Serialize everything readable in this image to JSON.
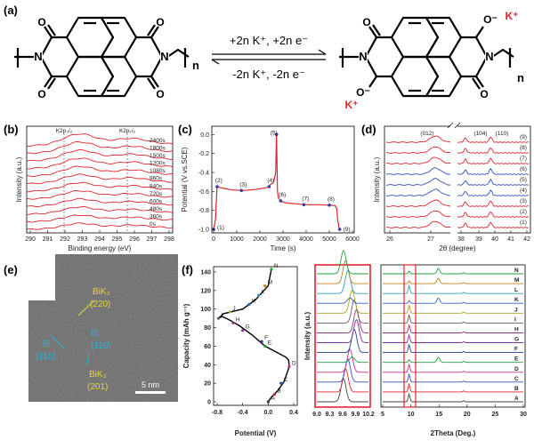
{
  "panels": {
    "a": {
      "label": "(a)",
      "forward": "+2n K⁺, +2n e⁻",
      "reverse": "-2n K⁺,  -2n e⁻",
      "n_left": "n",
      "n_right": "n",
      "atoms": {
        "N": "N",
        "O": "O",
        "Om": "O⁻",
        "K": "K⁺"
      },
      "colors": {
        "k_ion": "#e0242c",
        "bond": "#000000"
      }
    },
    "b": {
      "label": "(b)"
    },
    "c": {
      "label": "(c)"
    },
    "d": {
      "label": "(d)"
    },
    "e": {
      "label": "(e)",
      "annotations": [
        {
          "id": "bik3-220",
          "line1": "BiK₃",
          "line2": "(220)",
          "color": "#e8d830"
        },
        {
          "id": "bi-110-left",
          "line1": "Bi",
          "line2": "(110)",
          "color": "#22b8d8"
        },
        {
          "id": "bi-110-right",
          "line1": "Bi",
          "line2": "(110)",
          "color": "#22b8d8"
        },
        {
          "id": "bik3-201",
          "line1": "BiK₃",
          "line2": "(201)",
          "color": "#e8d830"
        }
      ],
      "scale_bar": "5 nm"
    },
    "f": {
      "label": "(f)"
    }
  },
  "chart_data": [
    {
      "id": "b",
      "type": "line",
      "xlabel": "Binding energy (eV)",
      "ylabel": "Intensity (a.u.)",
      "xlim": [
        290,
        298
      ],
      "xticks": [
        "290",
        "291",
        "292",
        "293",
        "294",
        "295",
        "296",
        "297",
        "298"
      ],
      "peak_labels": [
        "K2p₃/₂",
        "K2p₁/₂"
      ],
      "peak_positions": [
        292.9,
        295.7
      ],
      "series": [
        {
          "name": "0s"
        },
        {
          "name": "360s"
        },
        {
          "name": "480s"
        },
        {
          "name": "600s"
        },
        {
          "name": "720s"
        },
        {
          "name": "840s"
        },
        {
          "name": "960s"
        },
        {
          "name": "1080s"
        },
        {
          "name": "1200s"
        },
        {
          "name": "1500s"
        },
        {
          "name": "1800s"
        },
        {
          "name": "2400s"
        }
      ],
      "line_color": "#e0242c"
    },
    {
      "id": "c",
      "type": "line",
      "xlabel": "Time (s)",
      "ylabel": "Potential (V vs.SCE)",
      "xlim": [
        0,
        6000
      ],
      "ylim": [
        -1.0,
        0.05
      ],
      "xticks": [
        "0",
        "1000",
        "2000",
        "3000",
        "4000",
        "5000",
        "6000"
      ],
      "yticks": [
        "0.0",
        "-0.2",
        "-0.4",
        "-0.6",
        "-0.8",
        "-1.0"
      ],
      "x": [
        0,
        80,
        150,
        300,
        800,
        1300,
        1800,
        2300,
        2600,
        2680,
        2720,
        2760,
        2800,
        2900,
        3100,
        3500,
        4000,
        4500,
        5000,
        5250,
        5320,
        5360,
        5420,
        5450
      ],
      "y": [
        -1.0,
        -0.9,
        -0.55,
        -0.56,
        -0.585,
        -0.59,
        -0.58,
        -0.56,
        -0.5,
        -0.4,
        0.0,
        -0.6,
        -0.67,
        -0.7,
        -0.72,
        -0.73,
        -0.74,
        -0.74,
        -0.745,
        -0.75,
        -0.78,
        -0.9,
        -0.98,
        -1.0
      ],
      "points": [
        {
          "label": "(1)",
          "x": 0,
          "y": -1.0
        },
        {
          "label": "(2)",
          "x": 150,
          "y": -0.55
        },
        {
          "label": "(3)",
          "x": 1200,
          "y": -0.59
        },
        {
          "label": "(4)",
          "x": 2400,
          "y": -0.55
        },
        {
          "label": "(5)",
          "x": 2720,
          "y": 0.0
        },
        {
          "label": "(6)",
          "x": 2900,
          "y": -0.7
        },
        {
          "label": "(7)",
          "x": 3900,
          "y": -0.74
        },
        {
          "label": "(8)",
          "x": 5000,
          "y": -0.745
        },
        {
          "label": "(9)",
          "x": 5450,
          "y": -1.0
        }
      ],
      "line_color": "#e0242c",
      "point_color": "#3040a0"
    },
    {
      "id": "d",
      "type": "line",
      "xlabel": "2θ (degree)",
      "ylabel": "Intensity (a.u.)",
      "xticks": [
        "26",
        "27",
        "38",
        "39",
        "40",
        "41",
        "42"
      ],
      "peak_labels": [
        "(012)",
        "(104)",
        "(110)"
      ],
      "series": [
        {
          "name": "(1)",
          "color": "#e0242c"
        },
        {
          "name": "(2)",
          "color": "#e0242c"
        },
        {
          "name": "(3)",
          "color": "#e0242c"
        },
        {
          "name": "(4)",
          "color": "#3050c0"
        },
        {
          "name": "(5)",
          "color": "#3050c0"
        },
        {
          "name": "(6)",
          "color": "#3050c0"
        },
        {
          "name": "(7)",
          "color": "#e0242c"
        },
        {
          "name": "(8)",
          "color": "#e0242c"
        },
        {
          "name": "(9)",
          "color": "#e0242c"
        }
      ]
    },
    {
      "id": "f-left",
      "type": "line",
      "xlabel": "Potential (V)",
      "ylabel": "Capacity (mAh g⁻¹)",
      "xlim": [
        -0.8,
        0.4
      ],
      "ylim": [
        0,
        140
      ],
      "xticks": [
        "-0.8",
        "-0.4",
        "0.0",
        "0.4"
      ],
      "yticks": [
        "0",
        "20",
        "40",
        "60",
        "80",
        "100",
        "120",
        "140"
      ],
      "x": [
        0.0,
        0.05,
        0.15,
        0.25,
        0.33,
        0.32,
        0.28,
        -0.05,
        -0.25,
        -0.45,
        -0.6,
        -0.72,
        -0.78,
        -0.7,
        -0.4,
        -0.2,
        0.0,
        0.05
      ],
      "y": [
        0,
        5,
        12,
        22,
        38,
        45,
        48,
        60,
        72,
        82,
        88,
        92,
        90,
        95,
        100,
        110,
        125,
        145
      ],
      "points": [
        {
          "label": "A",
          "x": 0.0,
          "y": 0
        },
        {
          "label": "B",
          "x": 0.1,
          "y": 8
        },
        {
          "label": "C",
          "x": 0.2,
          "y": 20
        },
        {
          "label": "D",
          "x": 0.33,
          "y": 38
        },
        {
          "label": "E",
          "x": -0.05,
          "y": 60
        },
        {
          "label": "F",
          "x": -0.1,
          "y": 65
        },
        {
          "label": "G",
          "x": -0.4,
          "y": 77
        },
        {
          "label": "H",
          "x": -0.55,
          "y": 85
        },
        {
          "label": "I",
          "x": -0.78,
          "y": 90
        },
        {
          "label": "J",
          "x": -0.6,
          "y": 97
        },
        {
          "label": "K",
          "x": -0.3,
          "y": 105
        },
        {
          "label": "L",
          "x": -0.15,
          "y": 115
        },
        {
          "label": "M",
          "x": -0.05,
          "y": 125
        },
        {
          "label": "N",
          "x": 0.05,
          "y": 145
        }
      ],
      "line_color": "#000000"
    },
    {
      "id": "f-middle",
      "type": "line",
      "ylabel": "Intensity (a.u.)",
      "xlim": [
        9.0,
        10.2
      ],
      "xticks": [
        "9.0",
        "9.3",
        "9.6",
        "9.9",
        "10.2"
      ]
    },
    {
      "id": "f-right",
      "type": "line",
      "xlabel": "2Theta (Deg.)",
      "xlim": [
        5,
        30
      ],
      "xticks": [
        "5",
        "10",
        "15",
        "20",
        "25",
        "30"
      ],
      "series": [
        {
          "name": "A",
          "color": "#404040"
        },
        {
          "name": "B",
          "color": "#e0242c"
        },
        {
          "name": "C",
          "color": "#3050c0"
        },
        {
          "name": "D",
          "color": "#c03090"
        },
        {
          "name": "E",
          "color": "#20a040"
        },
        {
          "name": "F",
          "color": "#2040a0"
        },
        {
          "name": "G",
          "color": "#8030a0"
        },
        {
          "name": "H",
          "color": "#a03080"
        },
        {
          "name": "I",
          "color": "#606060"
        },
        {
          "name": "J",
          "color": "#b0a020"
        },
        {
          "name": "K",
          "color": "#3060c0"
        },
        {
          "name": "L",
          "color": "#30a0c0"
        },
        {
          "name": "M",
          "color": "#c08020"
        },
        {
          "name": "N",
          "color": "#20a040"
        }
      ]
    }
  ]
}
